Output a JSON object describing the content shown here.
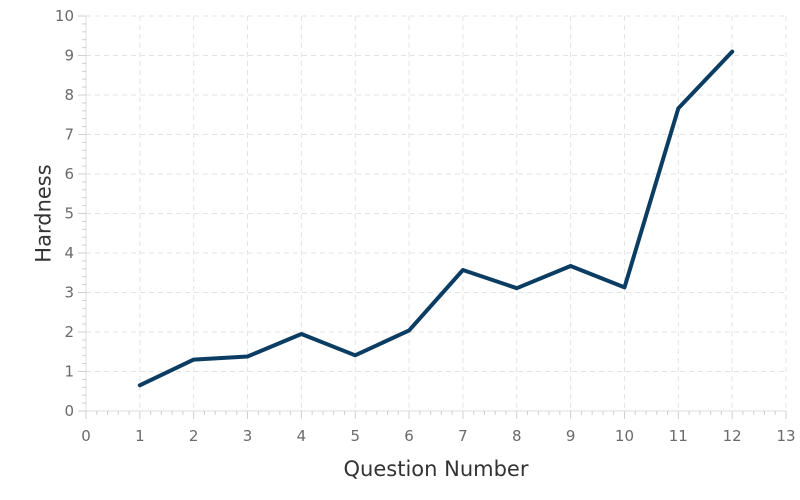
{
  "chart_data": {
    "type": "line",
    "title": "",
    "xlabel": "Question Number",
    "ylabel": "Hardness",
    "xlim": [
      0,
      13
    ],
    "ylim": [
      0,
      10
    ],
    "x_ticks": [
      0,
      1,
      2,
      3,
      4,
      5,
      6,
      7,
      8,
      9,
      10,
      11,
      12,
      13
    ],
    "y_ticks": [
      0,
      1,
      2,
      3,
      4,
      5,
      6,
      7,
      8,
      9,
      10
    ],
    "grid": true,
    "legend": "none",
    "series": [
      {
        "color": "#0b3d63",
        "x": [
          1,
          2,
          3,
          4,
          5,
          6,
          7,
          8,
          9,
          10,
          11,
          12
        ],
        "y": [
          0.65,
          1.3,
          1.38,
          1.95,
          1.41,
          2.04,
          3.57,
          3.11,
          3.67,
          3.13,
          7.66,
          9.1
        ]
      }
    ]
  }
}
